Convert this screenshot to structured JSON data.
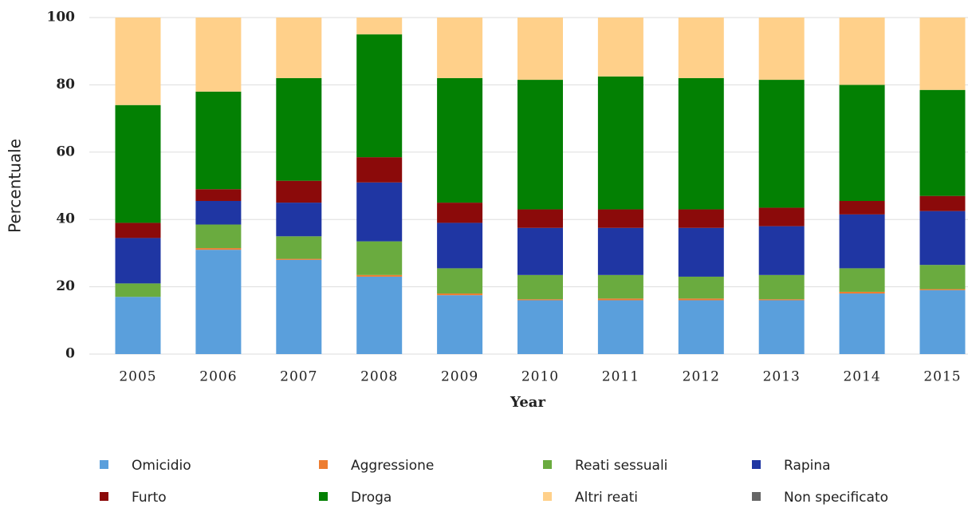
{
  "chart_data": {
    "type": "stacked_bar",
    "xlabel": "Year",
    "ylabel": "Percentuale",
    "categories": [
      "2005",
      "2006",
      "2007",
      "2008",
      "2009",
      "2010",
      "2011",
      "2012",
      "2013",
      "2014",
      "2015"
    ],
    "ylim": [
      0,
      100
    ],
    "yticks": [
      0,
      20,
      40,
      60,
      80,
      100
    ],
    "grid": true,
    "series": [
      {
        "name": "Omicidio",
        "color": "#5a9fdc",
        "values": [
          17,
          31,
          28,
          23,
          17.5,
          16,
          16,
          16,
          16,
          18,
          19
        ]
      },
      {
        "name": "Aggressione",
        "color": "#ed7d31",
        "values": [
          0,
          0.5,
          0.3,
          0.5,
          0.5,
          0.3,
          0.5,
          0.5,
          0.3,
          0.5,
          0.3
        ]
      },
      {
        "name": "Reati sessuali",
        "color": "#6aab3f",
        "values": [
          4,
          7,
          6.7,
          10,
          7.5,
          7.2,
          7,
          6.5,
          7.2,
          7,
          7.2
        ]
      },
      {
        "name": "Rapina",
        "color": "#1f36a3",
        "values": [
          13.5,
          7,
          10,
          17.5,
          13.5,
          14,
          14,
          14.5,
          14.5,
          16,
          16
        ]
      },
      {
        "name": "Furto",
        "color": "#8b0a0a",
        "values": [
          4.5,
          3.5,
          6.5,
          7.5,
          6,
          5.5,
          5.5,
          5.5,
          5.5,
          4,
          4.5
        ]
      },
      {
        "name": "Droga",
        "color": "#038003",
        "values": [
          35,
          29,
          30.5,
          36.5,
          37,
          38.5,
          39.5,
          39,
          38,
          34.5,
          31.5
        ]
      },
      {
        "name": "Altri reati",
        "color": "#ffd08a",
        "values": [
          26,
          22,
          18,
          5,
          18,
          18.5,
          17.5,
          18,
          18.5,
          20,
          21.5
        ]
      },
      {
        "name": "Non specificato",
        "color": "#666666",
        "values": [
          0,
          0,
          0,
          0,
          0,
          0,
          0,
          0,
          0,
          0,
          0
        ]
      }
    ]
  }
}
